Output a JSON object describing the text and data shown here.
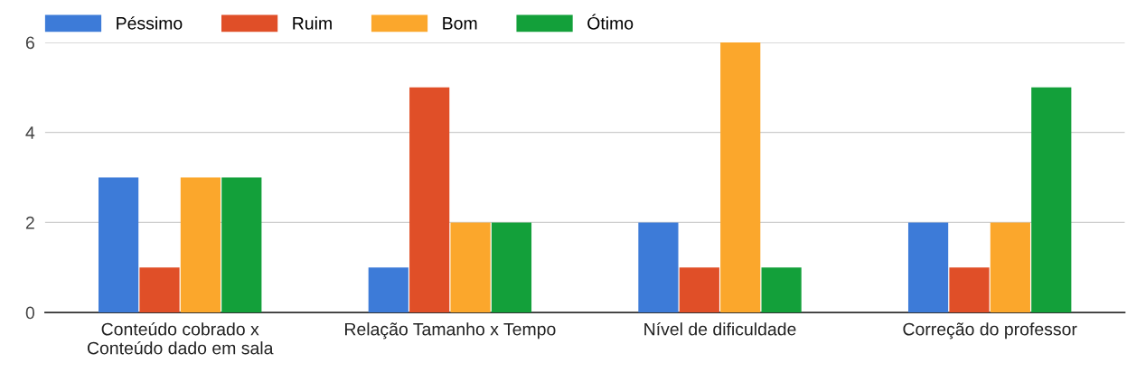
{
  "chart_data": {
    "type": "bar",
    "categories": [
      "Conteúdo cobrado x\nConteúdo dado em sala",
      "Relação Tamanho x Tempo",
      "Nível de dificuldade",
      "Correção do professor"
    ],
    "series": [
      {
        "name": "Péssimo",
        "color": "#3d7bd8",
        "values": [
          3,
          1,
          2,
          2
        ]
      },
      {
        "name": "Ruim",
        "color": "#e04f28",
        "values": [
          1,
          5,
          1,
          1
        ]
      },
      {
        "name": "Bom",
        "color": "#fba72c",
        "values": [
          3,
          2,
          6,
          2
        ]
      },
      {
        "name": "Ótimo",
        "color": "#13a03a",
        "values": [
          3,
          2,
          1,
          5
        ]
      }
    ],
    "ylim": [
      0,
      6
    ],
    "yticks": [
      0,
      2,
      4,
      6
    ],
    "grid": "y",
    "legend": "top left"
  }
}
